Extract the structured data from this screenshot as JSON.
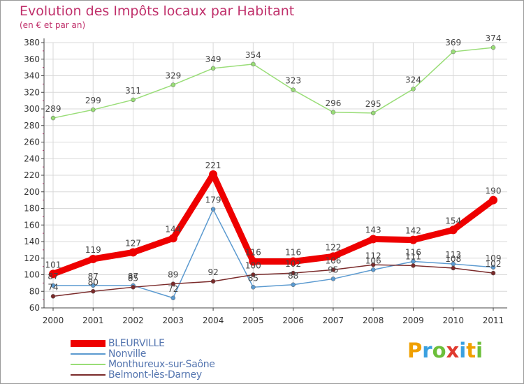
{
  "title": "Evolution des Impôts locaux par Habitant",
  "subtitle": "(en € et par an)",
  "logo_text": "Proxiti",
  "logo_letters": [
    "P",
    "r",
    "o",
    "x",
    "i",
    "t",
    "i"
  ],
  "logo_colors": [
    "#f0a000",
    "#3aa0e0",
    "#6cbf3a",
    "#e03a2f",
    "#3aa0e0",
    "#f0a000",
    "#6cbf3a"
  ],
  "chart_data": {
    "type": "line",
    "title": "Evolution des Impôts locaux par Habitant",
    "subtitle": "(en € et par an)",
    "xlabel": "",
    "ylabel": "",
    "x": [
      "2000",
      "2001",
      "2002",
      "2003",
      "2004",
      "2005",
      "2006",
      "2007",
      "2008",
      "2009",
      "2010",
      "2011"
    ],
    "ylim": [
      60,
      380
    ],
    "yticks": [
      60,
      80,
      100,
      120,
      140,
      160,
      180,
      200,
      220,
      240,
      260,
      280,
      300,
      320,
      340,
      360,
      380
    ],
    "grid": true,
    "legend_position": "bottom-left",
    "series": [
      {
        "name": "BLEURVILLE",
        "color": "#ee0000",
        "width": 9,
        "values": [
          101,
          119,
          127,
          144,
          221,
          116,
          116,
          122,
          143,
          142,
          154,
          190
        ]
      },
      {
        "name": "Nonville",
        "color": "#5b9ad0",
        "width": 1.5,
        "values": [
          87,
          87,
          87,
          72,
          179,
          85,
          88,
          95,
          106,
          116,
          113,
          109
        ]
      },
      {
        "name": "Monthureux-sur-Saône",
        "color": "#99dd77",
        "width": 1.5,
        "values": [
          289,
          299,
          311,
          329,
          349,
          354,
          323,
          296,
          295,
          324,
          369,
          374
        ]
      },
      {
        "name": "Belmont-lès-Darney",
        "color": "#7a2a2a",
        "width": 1.5,
        "values": [
          74,
          80,
          85,
          89,
          92,
          100,
          102,
          106,
          112,
          111,
          108,
          102
        ]
      }
    ]
  }
}
